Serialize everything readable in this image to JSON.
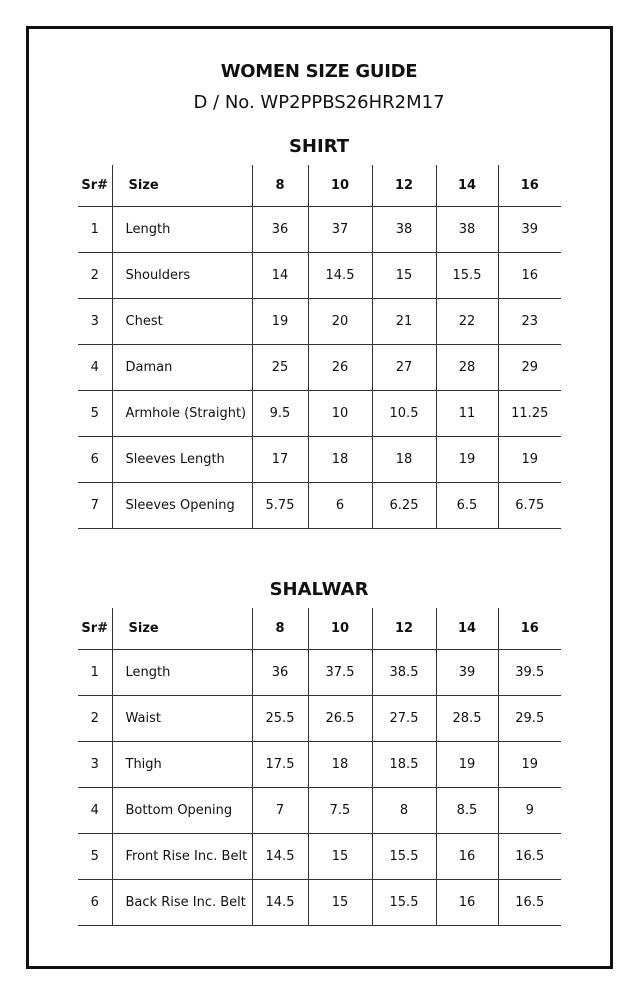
{
  "title": "WOMEN SIZE GUIDE",
  "design_no": "D / No. WP2PPBS26HR2M17",
  "shirt": {
    "heading": "SHIRT",
    "headers": [
      "Sr#",
      "Size",
      "8",
      "10",
      "12",
      "14",
      "16"
    ],
    "rows": [
      [
        "1",
        "Length",
        "36",
        "37",
        "38",
        "38",
        "39"
      ],
      [
        "2",
        "Shoulders",
        "14",
        "14.5",
        "15",
        "15.5",
        "16"
      ],
      [
        "3",
        "Chest",
        "19",
        "20",
        "21",
        "22",
        "23"
      ],
      [
        "4",
        "Daman",
        "25",
        "26",
        "27",
        "28",
        "29"
      ],
      [
        "5",
        "Armhole (Straight)",
        "9.5",
        "10",
        "10.5",
        "11",
        "11.25"
      ],
      [
        "6",
        "Sleeves Length",
        "17",
        "18",
        "18",
        "19",
        "19"
      ],
      [
        "7",
        "Sleeves Opening",
        "5.75",
        "6",
        "6.25",
        "6.5",
        "6.75"
      ]
    ]
  },
  "shalwar": {
    "heading": "SHALWAR",
    "headers": [
      "Sr#",
      "Size",
      "8",
      "10",
      "12",
      "14",
      "16"
    ],
    "rows": [
      [
        "1",
        "Length",
        "36",
        "37.5",
        "38.5",
        "39",
        "39.5"
      ],
      [
        "2",
        "Waist",
        "25.5",
        "26.5",
        "27.5",
        "28.5",
        "29.5"
      ],
      [
        "3",
        "Thigh",
        "17.5",
        "18",
        "18.5",
        "19",
        "19"
      ],
      [
        "4",
        "Bottom Opening",
        "7",
        "7.5",
        "8",
        "8.5",
        "9"
      ],
      [
        "5",
        "Front Rise Inc. Belt",
        "14.5",
        "15",
        "15.5",
        "16",
        "16.5"
      ],
      [
        "6",
        "Back Rise Inc. Belt",
        "14.5",
        "15",
        "15.5",
        "16",
        "16.5"
      ]
    ]
  }
}
